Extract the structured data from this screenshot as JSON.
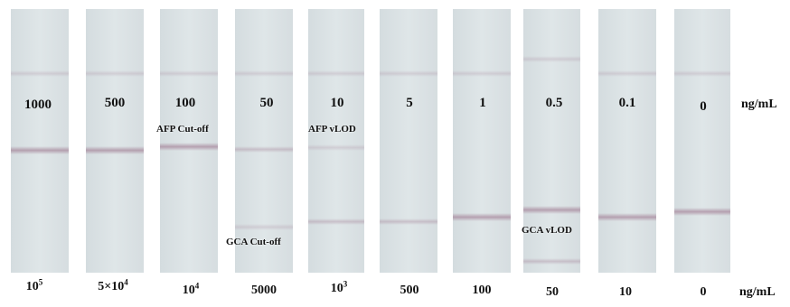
{
  "top_values": [
    "1000",
    "500",
    "100",
    "50",
    "10",
    "5",
    "1",
    "0.5",
    "0.1",
    "0"
  ],
  "top_unit": "ng/mL",
  "bottom_values": [
    {
      "base": "10",
      "sup": "5"
    },
    {
      "base": "5×10",
      "sup": "4"
    },
    {
      "base": "10",
      "sup": "4"
    },
    {
      "base": "5000",
      "sup": ""
    },
    {
      "base": "10",
      "sup": "3"
    },
    {
      "base": "500",
      "sup": ""
    },
    {
      "base": "100",
      "sup": ""
    },
    {
      "base": "50",
      "sup": ""
    },
    {
      "base": "10",
      "sup": ""
    },
    {
      "base": "0",
      "sup": ""
    }
  ],
  "bottom_unit": "ng/mL",
  "annotations": {
    "afp_cutoff": "AFP Cut-off",
    "afp_vlod": "AFP vLOD",
    "gca_cutoff": "GCA Cut-off",
    "gca_vlod": "GCA vLOD"
  }
}
